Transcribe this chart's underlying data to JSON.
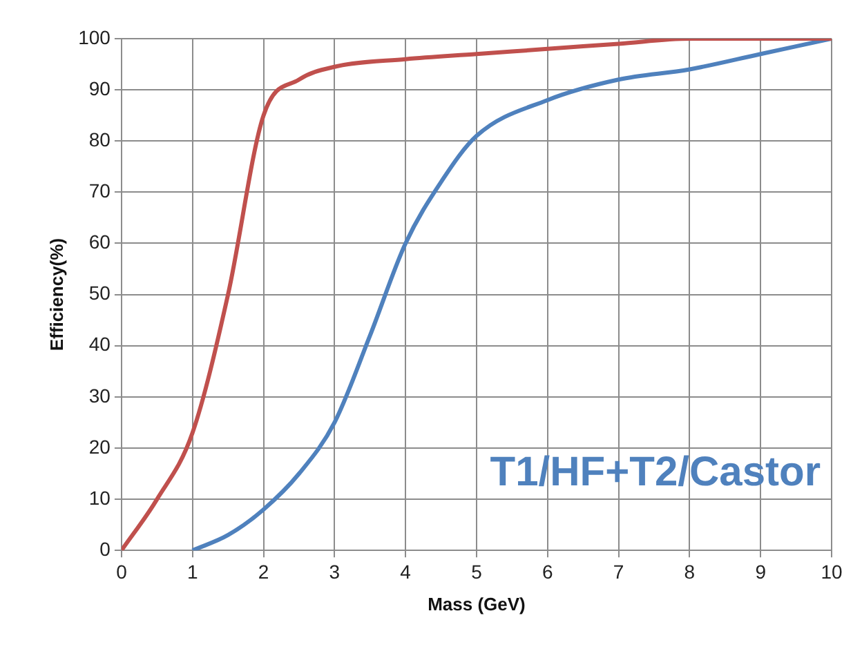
{
  "chart_data": {
    "type": "line",
    "xlabel": "Mass (GeV)",
    "ylabel": "Efficiency(%)",
    "annotations": [
      "T1/HF+T2/Castor"
    ],
    "series": [
      {
        "color": "#c0504d",
        "x": [
          0,
          0.5,
          1,
          1.5,
          2,
          2.5,
          3,
          4,
          5,
          6,
          7,
          8,
          9,
          10
        ],
        "values": [
          0,
          10,
          23,
          50,
          85,
          92,
          94.5,
          96,
          97,
          98,
          99,
          100,
          100,
          100
        ]
      },
      {
        "color": "#4f81bd",
        "x": [
          1,
          1.5,
          2,
          2.5,
          3,
          3.5,
          4,
          4.5,
          5,
          6,
          7,
          8,
          9,
          10
        ],
        "values": [
          0,
          3,
          8,
          15,
          25,
          42,
          60,
          72,
          81,
          88,
          92,
          94,
          97,
          100
        ]
      }
    ],
    "xlim": [
      0,
      10
    ],
    "xticks": [
      0,
      1,
      2,
      3,
      4,
      5,
      6,
      7,
      8,
      9,
      10
    ],
    "ylim": [
      0,
      100
    ],
    "yticks": [
      0,
      10,
      20,
      30,
      40,
      50,
      60,
      70,
      80,
      90,
      100
    ],
    "grid": true,
    "legend": false,
    "marker": "none",
    "line_style": "solid"
  }
}
